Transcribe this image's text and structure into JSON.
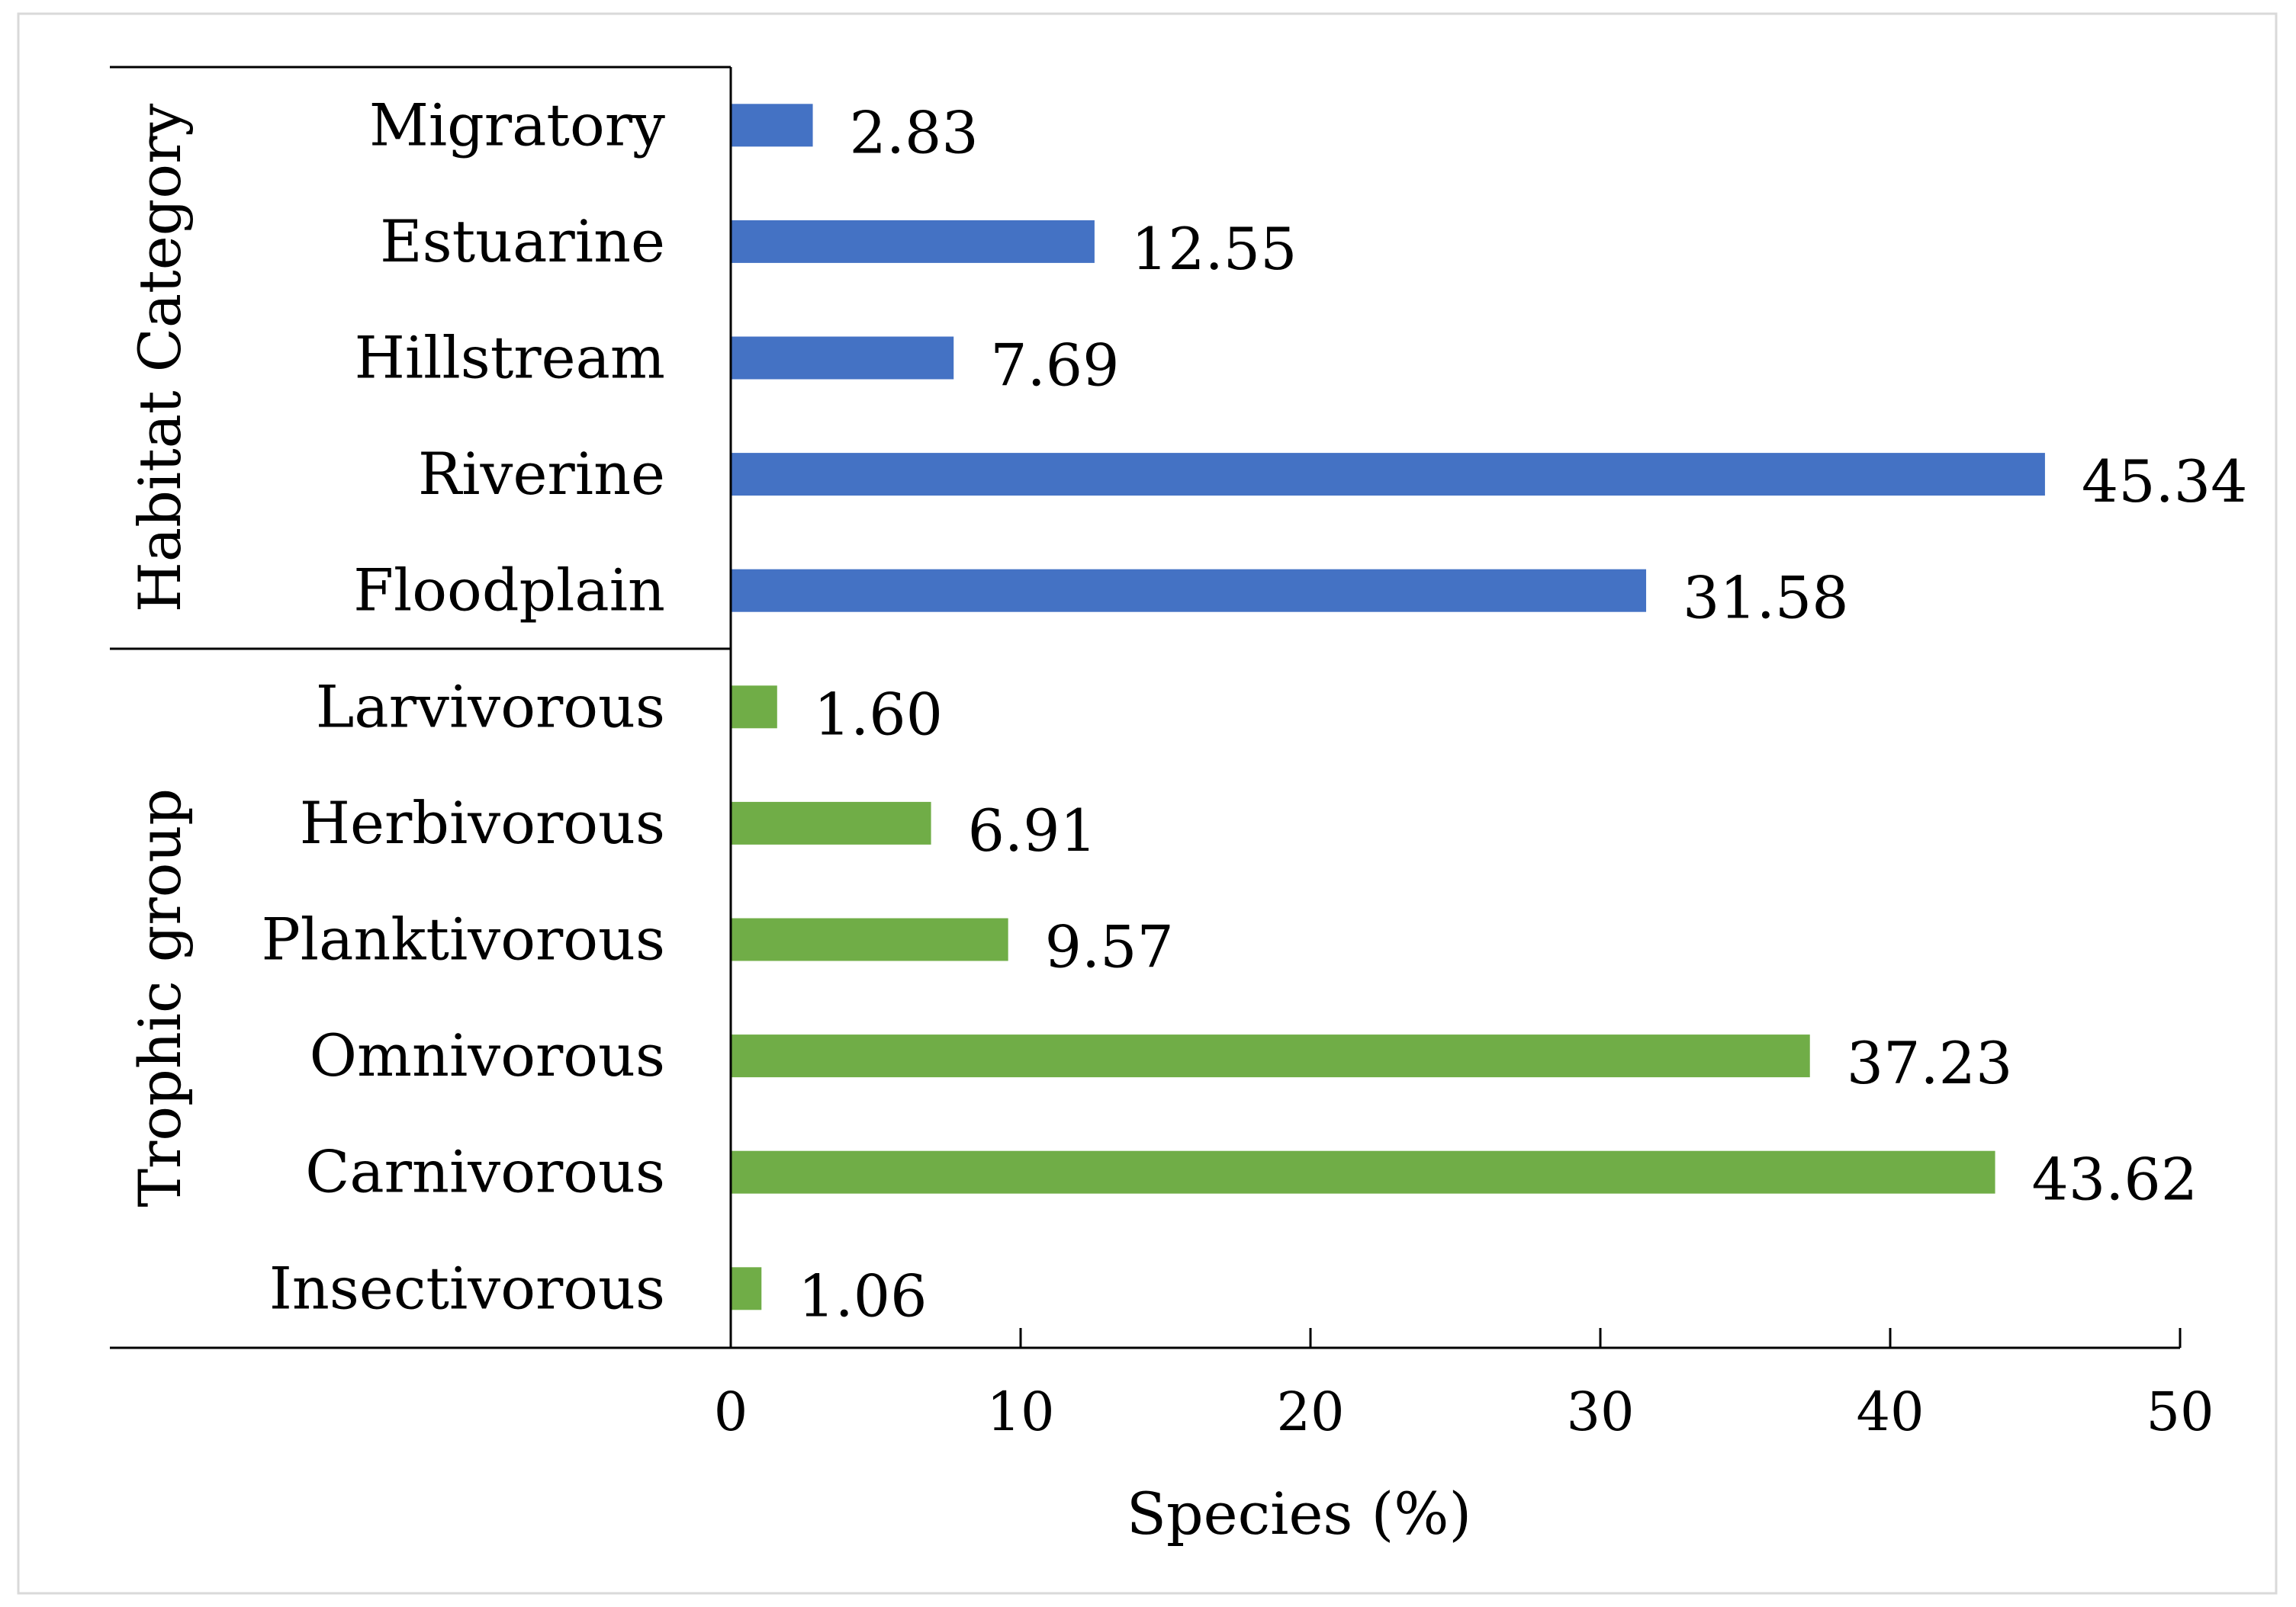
{
  "chart_data": {
    "type": "bar",
    "orientation": "horizontal",
    "xlabel": "Species (%)",
    "xlim": [
      0,
      50
    ],
    "x_ticks": [
      "0",
      "10",
      "20",
      "30",
      "40",
      "50"
    ],
    "grid": false,
    "groups": [
      {
        "name": "Habitat Category",
        "color": "#4472C4",
        "categories": [
          "Migratory",
          "Estuarine",
          "Hillstream",
          "Riverine",
          "Floodplain"
        ],
        "values": [
          2.83,
          12.55,
          7.69,
          45.34,
          31.58
        ],
        "labels": [
          "2.83",
          "12.55",
          "7.69",
          "45.34",
          "31.58"
        ]
      },
      {
        "name": "Trophic group",
        "color": "#70AD47",
        "categories": [
          "Larvivorous",
          "Herbivorous",
          "Planktivorous",
          "Omnivorous",
          "Carnivorous",
          "Insectivorous"
        ],
        "values": [
          1.6,
          6.91,
          9.57,
          37.23,
          43.62,
          1.06
        ],
        "labels": [
          "1.60",
          "6.91",
          "9.57",
          "37.23",
          "43.62",
          "1.06"
        ]
      }
    ]
  }
}
